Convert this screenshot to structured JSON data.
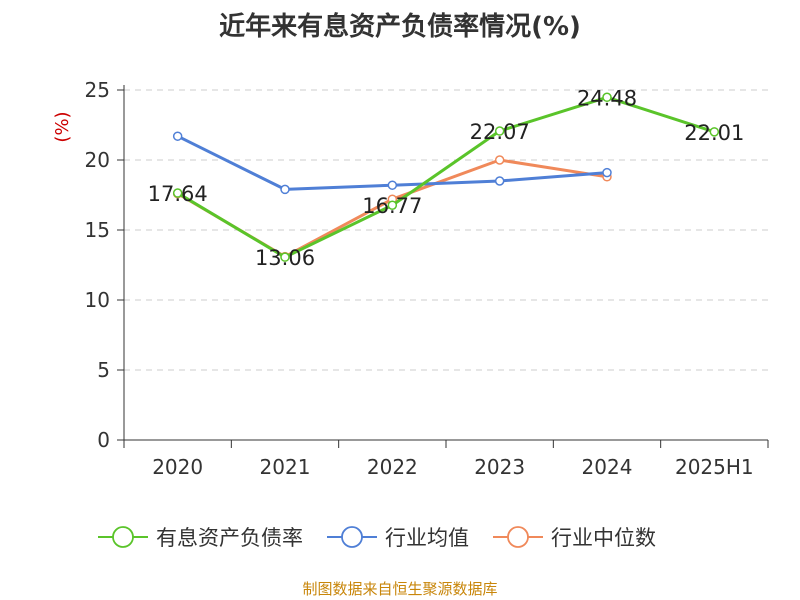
{
  "chart_data": {
    "type": "line",
    "title": "近年来有息资产负债率情况(%)",
    "ylabel": "(%)",
    "xlabel": "",
    "categories": [
      "2020",
      "2021",
      "2022",
      "2023",
      "2024",
      "2025H1"
    ],
    "ylim": [
      0,
      25
    ],
    "yticks": [
      0,
      5,
      10,
      15,
      20,
      25
    ],
    "grid": "horizontal-dashed",
    "legend_position": "bottom",
    "series": [
      {
        "name": "有息资产负债率",
        "color": "#5ac42a",
        "values": [
          17.64,
          13.06,
          16.77,
          22.07,
          24.48,
          22.01
        ],
        "labels": true
      },
      {
        "name": "行业均值",
        "color": "#4f7fd6",
        "values": [
          21.7,
          17.9,
          18.2,
          18.5,
          19.1,
          null
        ],
        "labels": false
      },
      {
        "name": "行业中位数",
        "color": "#f0895a",
        "values": [
          17.6,
          13.1,
          17.2,
          20.0,
          18.8,
          null
        ],
        "labels": false
      }
    ]
  },
  "source": "制图数据来自恒生聚源数据库"
}
